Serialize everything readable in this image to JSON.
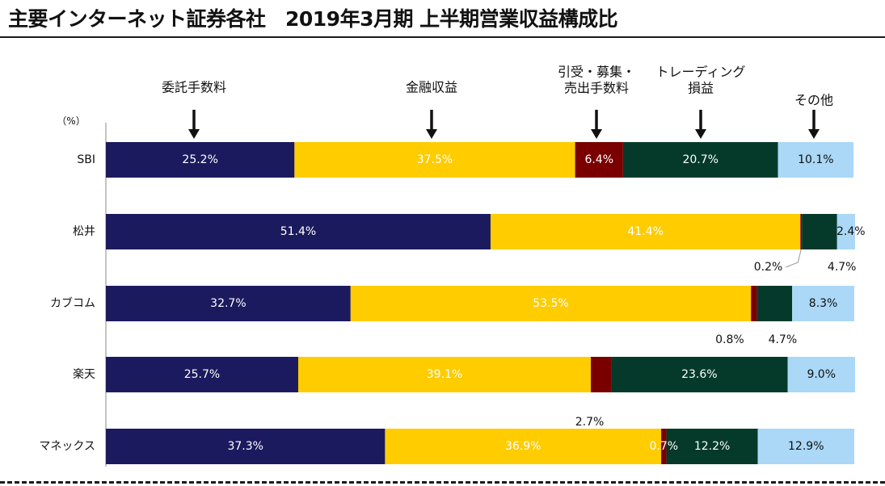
{
  "title": "主要インターネット証券各社　2019年3月期 上半期営業収益構成比",
  "chart_data": {
    "type": "bar",
    "orientation": "horizontal",
    "stacked": true,
    "percent_stacked": true,
    "unit_label": "（%）",
    "categories": [
      "SBI",
      "松井",
      "カブコム",
      "楽天",
      "マネックス"
    ],
    "series": [
      {
        "name": "委託手数料",
        "header_lines": [
          "委託手数料"
        ],
        "color": "#1c1a5e",
        "label_color": "#ffffff",
        "values": [
          25.2,
          51.4,
          32.7,
          25.7,
          37.3
        ],
        "labels": [
          "25.2%",
          "51.4%",
          "32.7%",
          "25.7%",
          "37.3%"
        ]
      },
      {
        "name": "金融収益",
        "header_lines": [
          "金融収益"
        ],
        "color": "#ffcc00",
        "label_color": "#ffffff",
        "values": [
          37.5,
          41.4,
          53.5,
          39.1,
          36.9
        ],
        "labels": [
          "37.5%",
          "41.4%",
          "53.5%",
          "39.1%",
          "36.9%"
        ]
      },
      {
        "name": "引受・募集・売出手数料",
        "header_lines": [
          "引受・募集・",
          "売出手数料"
        ],
        "color": "#7a0000",
        "label_color": "#ffffff",
        "values": [
          6.4,
          0.2,
          0.8,
          2.7,
          0.7
        ],
        "labels": [
          "6.4%",
          "0.2%",
          "0.8%",
          "2.7%",
          "0.7%"
        ]
      },
      {
        "name": "トレーディング損益",
        "header_lines": [
          "トレーディング",
          "損益"
        ],
        "color": "#053a2b",
        "label_color": "#ffffff",
        "values": [
          20.7,
          4.7,
          4.7,
          23.6,
          12.2
        ],
        "labels": [
          "20.7%",
          "4.7%",
          "4.7%",
          "23.6%",
          "12.2%"
        ]
      },
      {
        "name": "その他",
        "header_lines": [
          "その他"
        ],
        "color": "#aad8f6",
        "label_color": "#111111",
        "values": [
          10.1,
          2.4,
          8.3,
          9.0,
          12.9
        ],
        "labels": [
          "10.1%",
          "2.4%",
          "8.3%",
          "9.0%",
          "12.9%"
        ]
      }
    ],
    "xlim": [
      0,
      100
    ],
    "legend": "column headers with arrows above bars"
  }
}
